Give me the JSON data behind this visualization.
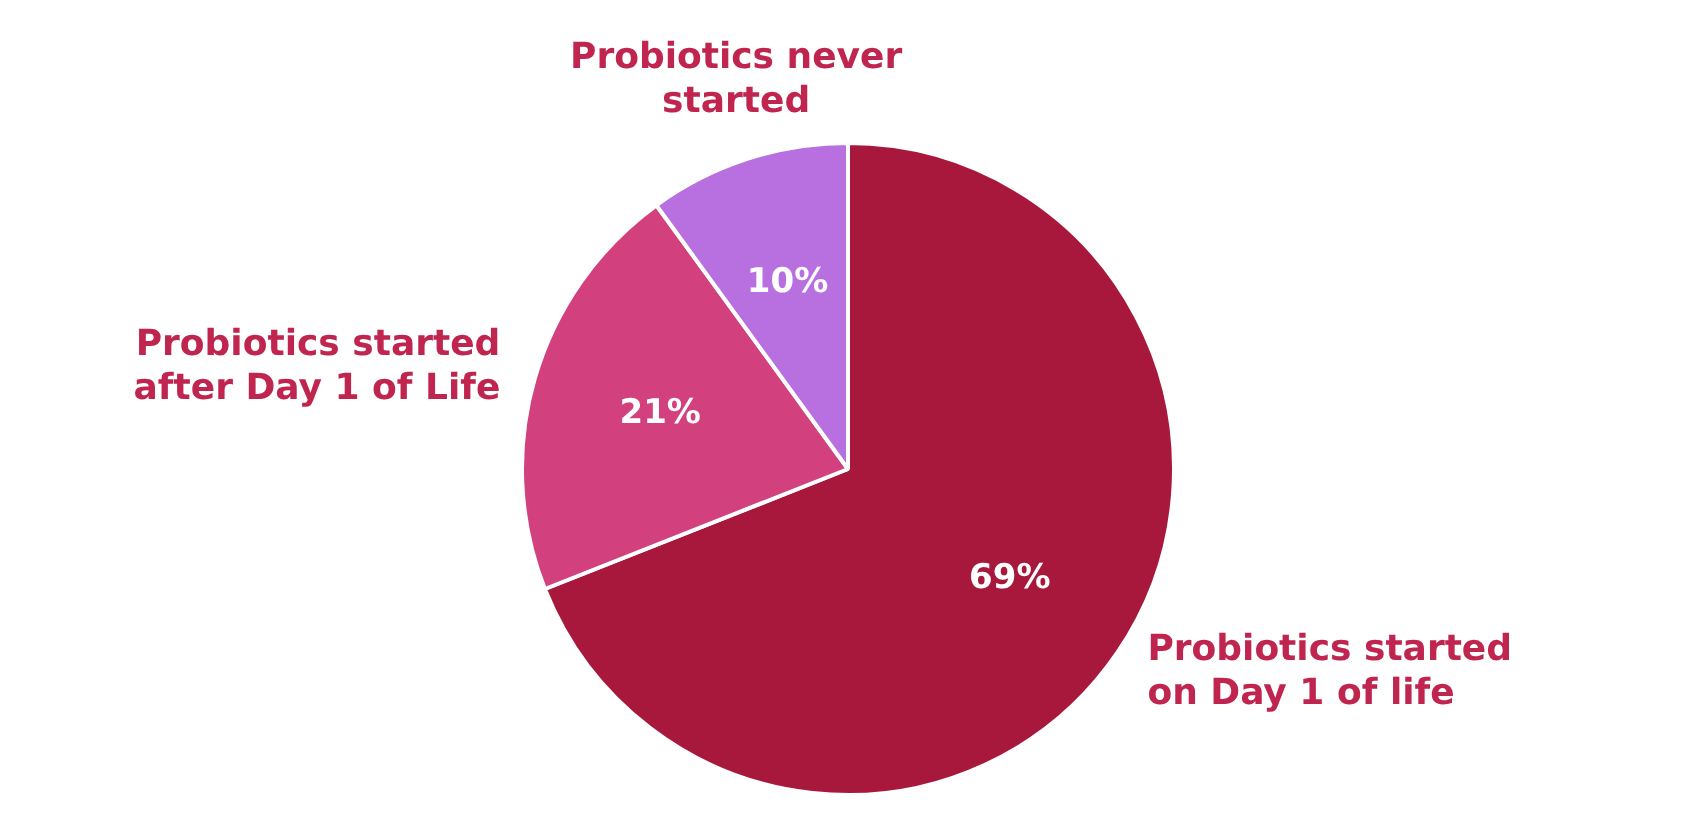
{
  "chart_data": {
    "type": "pie",
    "categories": [
      "Probiotics started on Day 1 of life",
      "Probiotics started after Day 1 of Life",
      "Probiotics never started"
    ],
    "values": [
      69,
      21,
      10
    ],
    "colors": [
      "#a8183c",
      "#d2417e",
      "#b86fe0"
    ],
    "value_labels": [
      "69%",
      "21%",
      "10%"
    ],
    "legend": false
  }
}
